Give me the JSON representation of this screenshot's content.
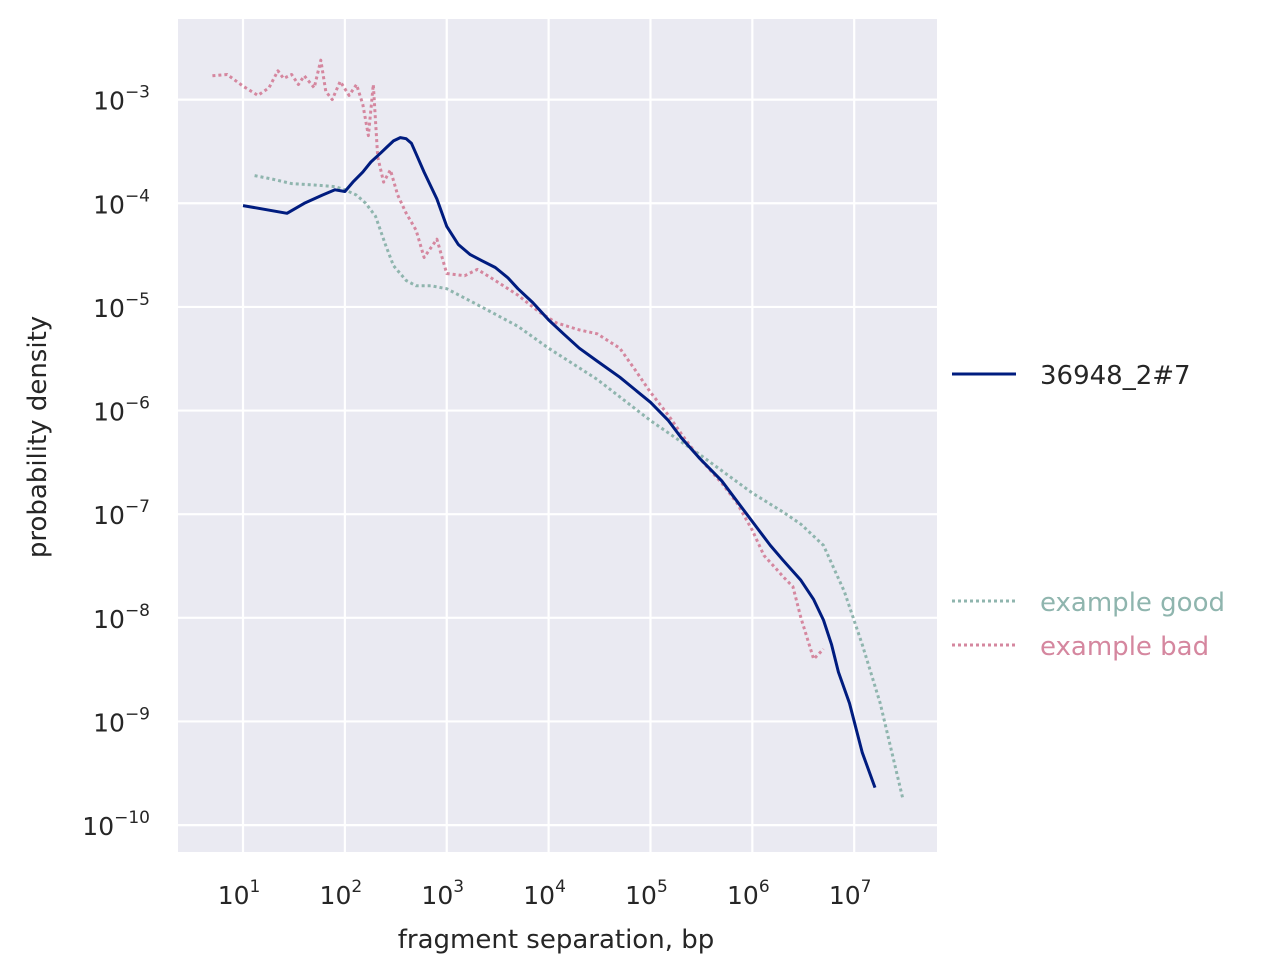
{
  "chart_data": {
    "type": "line",
    "title": "",
    "xlabel": "fragment separation, bp",
    "ylabel": "probability density",
    "xscale": "log",
    "yscale": "log",
    "xlim": [
      2.3,
      65000000
    ],
    "ylim": [
      5.5e-11,
      0.006
    ],
    "x_ticks": [
      {
        "base": "10",
        "exp": "1",
        "value": 10
      },
      {
        "base": "10",
        "exp": "2",
        "value": 100
      },
      {
        "base": "10",
        "exp": "3",
        "value": 1000
      },
      {
        "base": "10",
        "exp": "4",
        "value": 10000
      },
      {
        "base": "10",
        "exp": "5",
        "value": 100000
      },
      {
        "base": "10",
        "exp": "6",
        "value": 1000000
      },
      {
        "base": "10",
        "exp": "7",
        "value": 10000000
      }
    ],
    "y_ticks": [
      {
        "base": "10",
        "exp": "−3",
        "value": 0.001
      },
      {
        "base": "10",
        "exp": "−4",
        "value": 0.0001
      },
      {
        "base": "10",
        "exp": "−5",
        "value": 1e-05
      },
      {
        "base": "10",
        "exp": "−6",
        "value": 1e-06
      },
      {
        "base": "10",
        "exp": "−7",
        "value": 1e-07
      },
      {
        "base": "10",
        "exp": "−8",
        "value": 1e-08
      },
      {
        "base": "10",
        "exp": "−9",
        "value": 1e-09
      },
      {
        "base": "10",
        "exp": "−10",
        "value": 1e-10
      }
    ],
    "grid": true,
    "background": "#eaeaf2",
    "legend_placement": "right",
    "series": [
      {
        "name": "36948_2#7",
        "color": "#001c7f",
        "style": "solid",
        "x": [
          10,
          27,
          40,
          60,
          80,
          100,
          120,
          150,
          180,
          220,
          260,
          300,
          350,
          400,
          450,
          500,
          600,
          800,
          1000,
          1300,
          1700,
          2200,
          3000,
          4000,
          5000,
          7000,
          10000,
          14000,
          20000,
          30000,
          50000,
          70000,
          100000,
          150000,
          200000,
          300000,
          500000,
          700000,
          1000000,
          1500000,
          2000000,
          3000000,
          4000000,
          5000000,
          6000000,
          7000000,
          9000000,
          12000000,
          16000000
        ],
        "y": [
          9.5e-05,
          8e-05,
          0.0001,
          0.00012,
          0.000135,
          0.00013,
          0.00016,
          0.0002,
          0.00025,
          0.0003,
          0.00035,
          0.0004,
          0.00043,
          0.00042,
          0.00038,
          0.0003,
          0.0002,
          0.00011,
          6e-05,
          4e-05,
          3.2e-05,
          2.8e-05,
          2.4e-05,
          1.9e-05,
          1.5e-05,
          1.1e-05,
          7.5e-06,
          5.5e-06,
          4e-06,
          3e-06,
          2.1e-06,
          1.6e-06,
          1.2e-06,
          8e-07,
          5.5e-07,
          3.5e-07,
          2.1e-07,
          1.35e-07,
          8.5e-08,
          5e-08,
          3.6e-08,
          2.3e-08,
          1.5e-08,
          9.5e-09,
          5.5e-09,
          3e-09,
          1.5e-09,
          5e-10,
          2.3e-10
        ]
      },
      {
        "name": "example good",
        "color": "#8fb5ae",
        "style": "dotted",
        "x": [
          13,
          20,
          30,
          50,
          80,
          100,
          130,
          160,
          200,
          250,
          300,
          400,
          500,
          700,
          1000,
          2000,
          5000,
          10000,
          30000,
          100000,
          300000,
          1000000,
          2000000,
          3000000,
          5000000,
          8000000,
          12000000,
          18000000,
          30000000
        ],
        "y": [
          0.000185,
          0.00017,
          0.000155,
          0.00015,
          0.000145,
          0.000135,
          0.00012,
          0.0001,
          7.5e-05,
          4e-05,
          2.5e-05,
          1.8e-05,
          1.6e-05,
          1.6e-05,
          1.5e-05,
          1.05e-05,
          6.5e-06,
          4e-06,
          2e-06,
          8e-07,
          3.8e-07,
          1.6e-07,
          1.05e-07,
          8e-08,
          5e-08,
          1.8e-08,
          5.5e-09,
          1.5e-09,
          1.8e-10
        ]
      },
      {
        "name": "example bad",
        "color": "#d5879f",
        "style": "dotted",
        "x": [
          5,
          7,
          10,
          14,
          18,
          22,
          25,
          30,
          35,
          40,
          50,
          58,
          65,
          75,
          90,
          110,
          130,
          150,
          170,
          190,
          210,
          240,
          280,
          330,
          400,
          500,
          600,
          800,
          1000,
          1500,
          2000,
          3000,
          5000,
          8000,
          12000,
          20000,
          30000,
          50000,
          70000,
          100000,
          150000,
          200000,
          300000,
          500000,
          700000,
          1000000,
          1300000,
          1700000,
          2000000,
          2500000,
          3000000,
          4000000,
          5000000
        ],
        "y": [
          0.0017,
          0.00175,
          0.00135,
          0.0011,
          0.0013,
          0.0019,
          0.0016,
          0.00175,
          0.0014,
          0.0017,
          0.0013,
          0.0024,
          0.0012,
          0.001,
          0.0015,
          0.0011,
          0.0014,
          0.0009,
          0.00045,
          0.0014,
          0.00028,
          0.00016,
          0.00021,
          0.00012,
          8e-05,
          5.5e-05,
          3e-05,
          4.5e-05,
          2.1e-05,
          2e-05,
          2.3e-05,
          1.8e-05,
          1.3e-05,
          9e-06,
          7e-06,
          6e-06,
          5.5e-06,
          4e-06,
          2.5e-06,
          1.5e-06,
          9e-07,
          6e-07,
          3.5e-07,
          2e-07,
          1.3e-07,
          7e-08,
          4e-08,
          3e-08,
          2.5e-08,
          2e-08,
          1e-08,
          4e-09,
          5e-09
        ]
      }
    ]
  }
}
